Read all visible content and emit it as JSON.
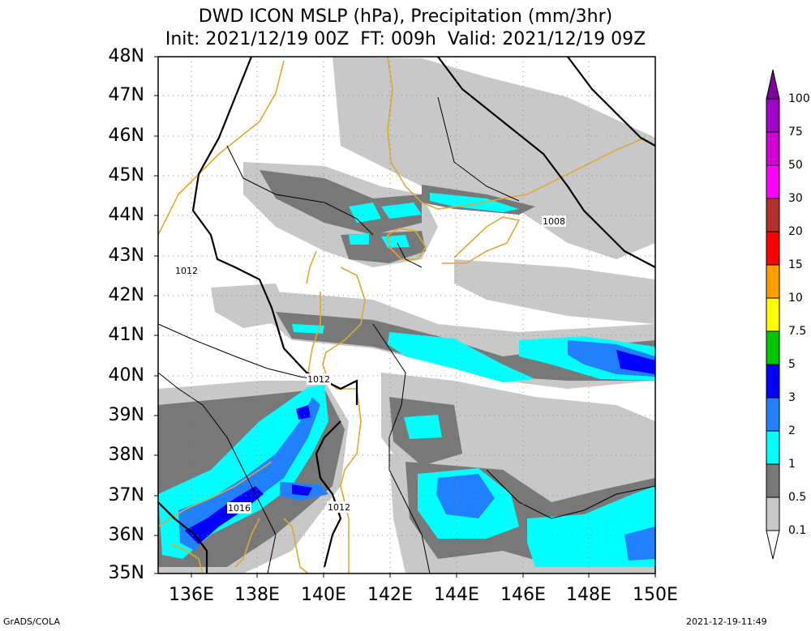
{
  "title": {
    "line1": "DWD ICON MSLP (hPa), Precipitation (mm/3hr)",
    "line2": "Init: 2021/12/19 00Z  FT: 009h  Valid: 2021/12/19 09Z"
  },
  "lat_labels": [
    "48N",
    "47N",
    "46N",
    "45N",
    "44N",
    "43N",
    "42N",
    "41N",
    "40N",
    "39N",
    "38N",
    "37N",
    "36N",
    "35N"
  ],
  "lon_labels": [
    "136E",
    "138E",
    "140E",
    "142E",
    "144E",
    "146E",
    "148E",
    "150E"
  ],
  "isobar_labels": {
    "a": "1012",
    "b": "1012",
    "c": "1016",
    "d": "1012",
    "e": "1008"
  },
  "colorbar": {
    "labels": [
      "100",
      "75",
      "50",
      "30",
      "20",
      "15",
      "10",
      "7.5",
      "5",
      "3",
      "2",
      "1",
      "0.5",
      "0.1"
    ],
    "colors": [
      "#7a00a0",
      "#a000c8",
      "#d200d2",
      "#ff00ff",
      "#b2302a",
      "#ff0000",
      "#ffa000",
      "#ffff00",
      "#00c800",
      "#0000ff",
      "#2080ff",
      "#00ffff",
      "#787878",
      "#c8c8c8"
    ]
  },
  "footer": {
    "left": "GrADS/COLA",
    "right": "2021-12-19-11:49"
  },
  "colors": {
    "gray_light": "#c8c8c8",
    "gray_dark": "#787878",
    "cyan": "#00ffff",
    "blue_mid": "#2080ff",
    "blue": "#0000ff",
    "coast": "#e0a830"
  }
}
